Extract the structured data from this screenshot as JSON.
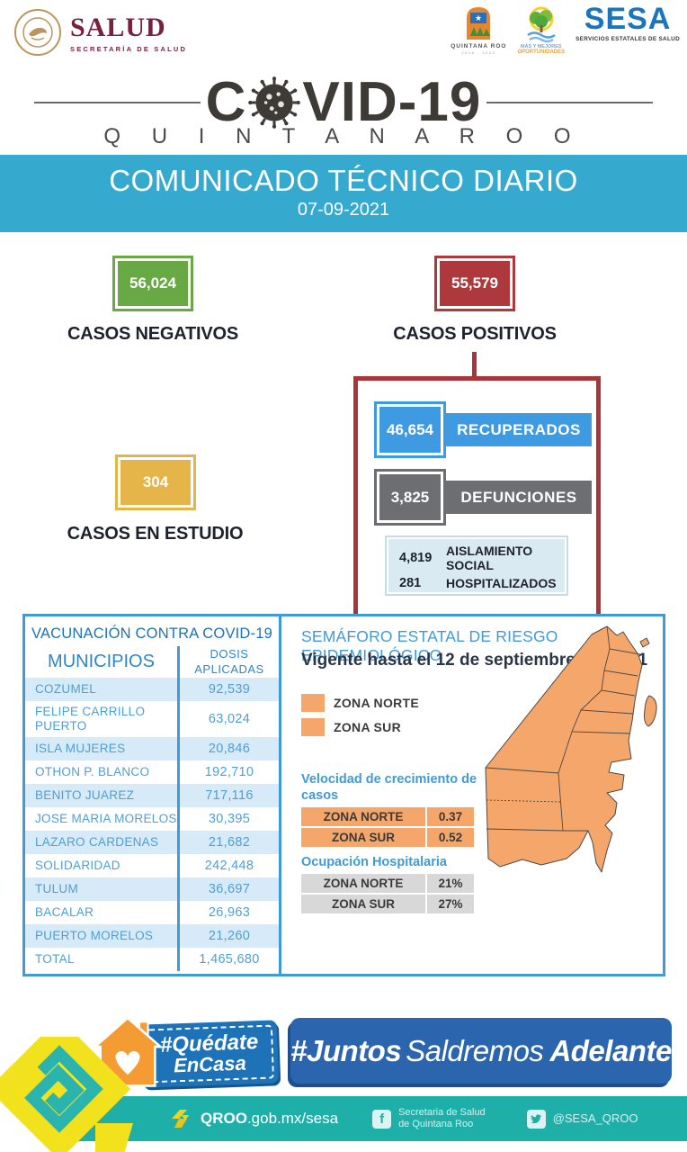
{
  "header": {
    "salud": {
      "title": "SALUD",
      "subtitle": "SECRETARÍA DE SALUD"
    },
    "quintana_roo_logo": {
      "line1": "QUINTANA ROO",
      "line2": "GOBIERNO DEL ESTADO",
      "line3": "2016 - 2022"
    },
    "oportunidades_logo": {
      "line1": "MÁS Y MEJORES",
      "line2": "OPORTUNIDADES"
    },
    "sesa_logo": {
      "title": "SESA",
      "subtitle": "SERVICIOS ESTATALES DE SALUD"
    },
    "covid_title_start": "C",
    "covid_title_end": "VID-19",
    "covid_subtitle": "Q U I N T A N A   R O O"
  },
  "banner": {
    "title": "COMUNICADO TÉCNICO DIARIO",
    "date": "07-09-2021",
    "bg": "#35A9CE"
  },
  "stats": {
    "negativos": {
      "value": "56,024",
      "label": "CASOS NEGATIVOS",
      "color": "#69A945"
    },
    "positivos": {
      "value": "55,579",
      "label": "CASOS POSITIVOS",
      "color": "#AD393C"
    },
    "estudio": {
      "value": "304",
      "label": "CASOS EN ESTUDIO",
      "color": "#E5B54A"
    },
    "recuperados": {
      "value": "46,654",
      "label": "RECUPERADOS",
      "color": "#3F9BE1"
    },
    "defunciones": {
      "value": "3,825",
      "label": "DEFUNCIONES",
      "color": "#6D6E71"
    },
    "aislamiento": {
      "value": "4,819",
      "label": "AISLAMIENTO SOCIAL"
    },
    "hospitalizados": {
      "value": "281",
      "label": "HOSPITALIZADOS"
    }
  },
  "vaccination": {
    "title": "VACUNACIÓN CONTRA COVID-19",
    "col1": "MUNICIPIOS",
    "col2a": "DOSIS",
    "col2b": "APLICADAS",
    "rows": [
      {
        "name": "COZUMEL",
        "value": "92,539"
      },
      {
        "name": "FELIPE CARRILLO PUERTO",
        "value": "63,024"
      },
      {
        "name": "ISLA MUJERES",
        "value": "20,846"
      },
      {
        "name": "OTHON P. BLANCO",
        "value": "192,710"
      },
      {
        "name": "BENITO JUAREZ",
        "value": "717,116"
      },
      {
        "name": "JOSE MARIA MORELOS",
        "value": "30,395"
      },
      {
        "name": "LAZARO CARDENAS",
        "value": "21,682"
      },
      {
        "name": "SOLIDARIDAD",
        "value": "242,448"
      },
      {
        "name": "TULUM",
        "value": "36,697"
      },
      {
        "name": "BACALAR",
        "value": "26,963"
      },
      {
        "name": "PUERTO MORELOS",
        "value": "21,260"
      },
      {
        "name": "TOTAL",
        "value": "1,465,680"
      }
    ]
  },
  "semaforo": {
    "title": "SEMÁFORO ESTATAL DE RIESGO EPIDEMIOLÓGICO",
    "vigencia": "Vigente hasta el 12 de septiembre del 2021",
    "zone_color": "#F5A66A",
    "legend": [
      {
        "label": "ZONA NORTE"
      },
      {
        "label": "ZONA SUR"
      }
    ],
    "velocidad": {
      "title_line1": "Velocidad de crecimiento de",
      "title_line2": "casos",
      "rows": [
        {
          "zone": "ZONA NORTE",
          "value": "0.37"
        },
        {
          "zone": "ZONA SUR",
          "value": "0.52"
        }
      ]
    },
    "ocupacion": {
      "title": "Ocupación Hospitalaria",
      "rows": [
        {
          "zone": "ZONA NORTE",
          "value": "21%"
        },
        {
          "zone": "ZONA SUR",
          "value": "27%"
        }
      ]
    }
  },
  "campaigns": {
    "quedate_line1": "#Quédate",
    "quedate_line2": "EnCasa",
    "juntos_part1": "#Juntos",
    "juntos_part2": "Saldremos",
    "juntos_part3": "Adelante"
  },
  "footer": {
    "url_bold": "QROO",
    "url_rest": ".gob.mx/sesa",
    "facebook_line1": "Secretaria de Salud",
    "facebook_line2": "de Quintana Roo",
    "facebook_glyph": "f",
    "twitter_handle": "@SESA_QROO",
    "teal": "#1FAFA9"
  }
}
